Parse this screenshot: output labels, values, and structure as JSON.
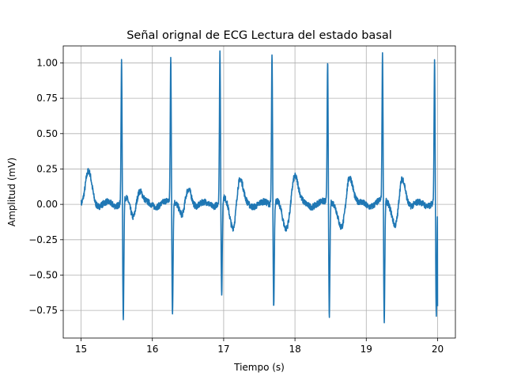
{
  "chart_data": {
    "type": "line",
    "title": "Señal orignal de ECG Lectura del estado basal",
    "xlabel": "Tiempo (s)",
    "ylabel": "Amplitud (mV)",
    "xlim": [
      14.75,
      20.25
    ],
    "ylim": [
      -0.945,
      1.12
    ],
    "grid": true,
    "x_ticks": [
      15,
      16,
      17,
      18,
      19,
      20
    ],
    "x_tick_labels": [
      "15",
      "16",
      "17",
      "18",
      "19",
      "20"
    ],
    "y_ticks": [
      -0.75,
      -0.5,
      -0.25,
      0.0,
      0.25,
      0.5,
      0.75,
      1.0
    ],
    "y_tick_labels": [
      "−0.75",
      "−0.50",
      "−0.25",
      "0.00",
      "0.25",
      "0.50",
      "0.75",
      "1.00"
    ],
    "series": [
      {
        "color": "#1f77b4",
        "x_range": [
          15.0,
          20.0
        ],
        "beats": [
          {
            "r_time": 15.58,
            "r_peak": 0.97,
            "s_min": -0.84
          },
          {
            "r_time": 16.27,
            "r_peak": 0.99,
            "s_min": -0.79
          },
          {
            "r_time": 16.96,
            "r_peak": 1.03,
            "s_min": -0.69
          },
          {
            "r_time": 17.69,
            "r_peak": 1.02,
            "s_min": -0.74
          },
          {
            "r_time": 18.47,
            "r_peak": 0.98,
            "s_min": -0.8
          },
          {
            "r_time": 19.24,
            "r_peak": 1.0,
            "s_min": -0.86
          },
          {
            "r_time": 19.97,
            "r_peak": 0.98,
            "s_min": -0.82
          }
        ],
        "start_value": 0.03,
        "end_value": -0.72
      }
    ]
  }
}
